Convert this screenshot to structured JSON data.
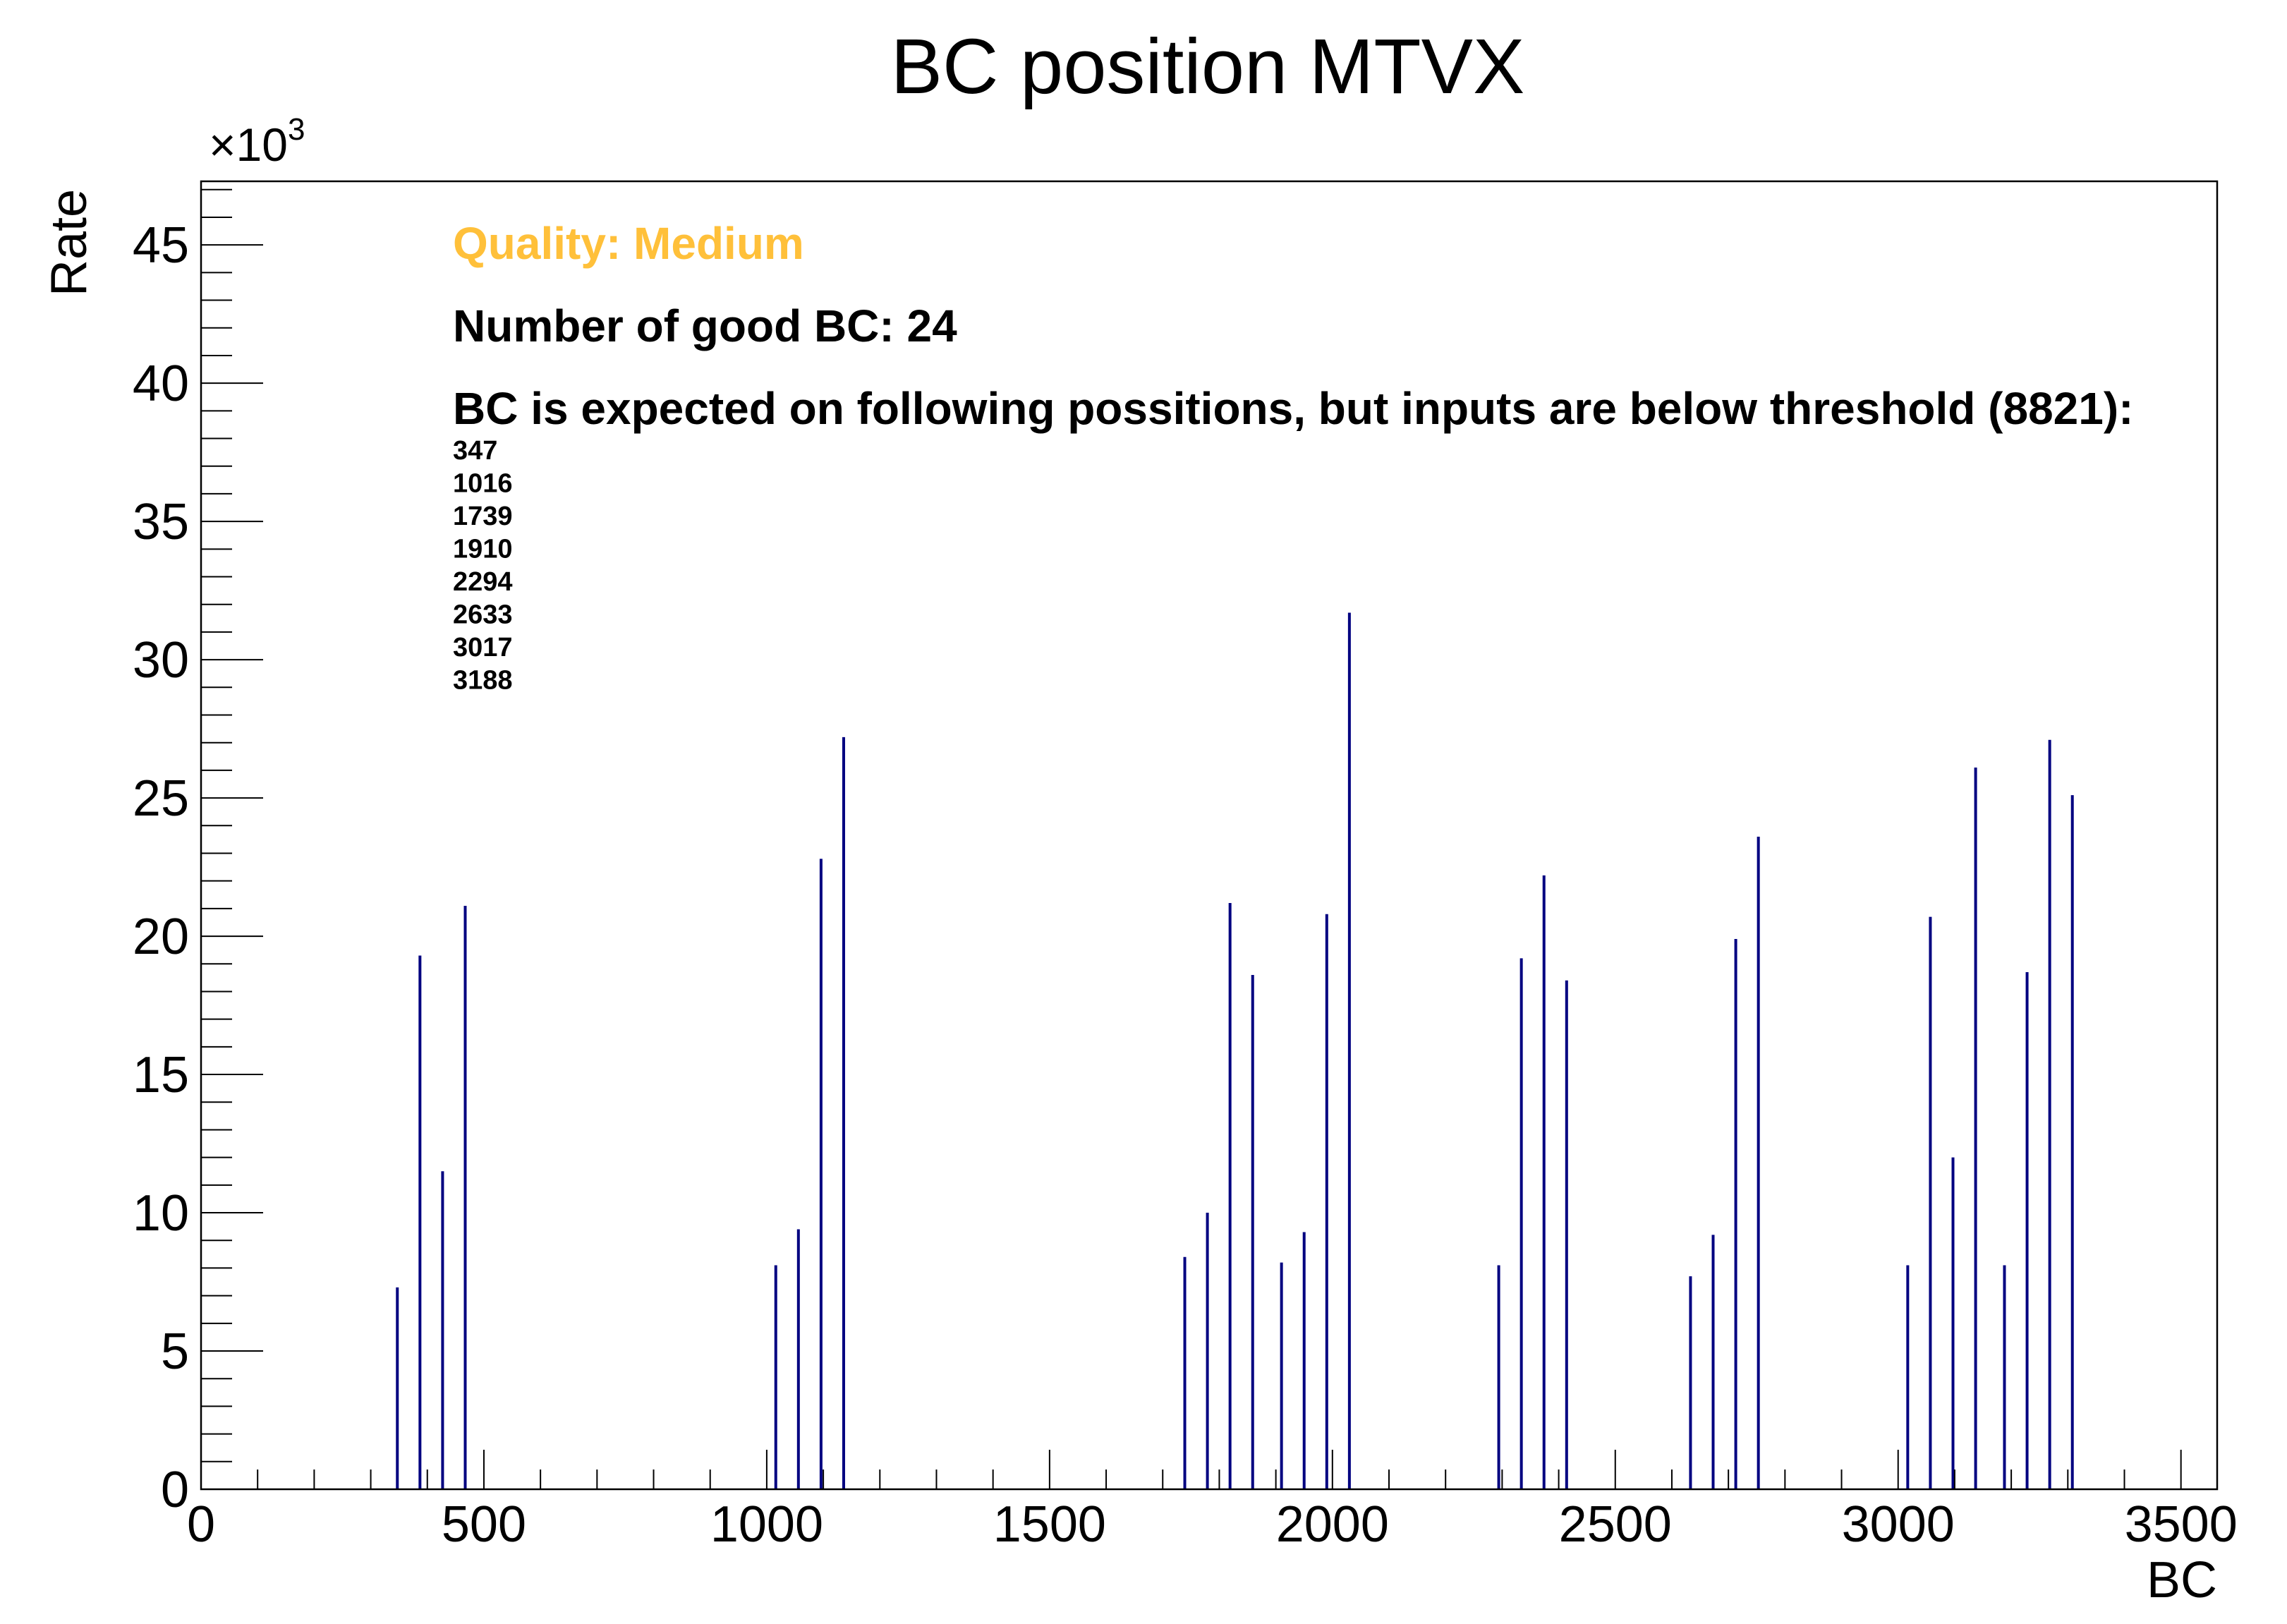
{
  "chart_data": {
    "type": "bar",
    "title": "BC position MTVX",
    "xlabel": "BC",
    "ylabel": "Rate",
    "exponent_label": "×10",
    "exponent_power": "3",
    "xlim": [
      0,
      3564
    ],
    "ylim": [
      0,
      47.3
    ],
    "x_ticks": [
      "0",
      "500",
      "1000",
      "1500",
      "2000",
      "2500",
      "3000",
      "3500"
    ],
    "y_ticks": [
      "0",
      "5",
      "10",
      "15",
      "20",
      "25",
      "30",
      "35",
      "40",
      "45"
    ],
    "grid": false,
    "bar_color": "#000080",
    "bars": [
      {
        "x": 347,
        "y": 7.3
      },
      {
        "x": 387,
        "y": 19.3
      },
      {
        "x": 427,
        "y": 11.5
      },
      {
        "x": 467,
        "y": 21.1
      },
      {
        "x": 1016,
        "y": 8.1
      },
      {
        "x": 1056,
        "y": 9.4
      },
      {
        "x": 1096,
        "y": 22.8
      },
      {
        "x": 1136,
        "y": 27.2
      },
      {
        "x": 1739,
        "y": 8.4
      },
      {
        "x": 1779,
        "y": 10.0
      },
      {
        "x": 1819,
        "y": 21.2
      },
      {
        "x": 1859,
        "y": 18.6
      },
      {
        "x": 1910,
        "y": 8.2
      },
      {
        "x": 1950,
        "y": 9.3
      },
      {
        "x": 1990,
        "y": 20.8
      },
      {
        "x": 2030,
        "y": 31.7
      },
      {
        "x": 2294,
        "y": 8.1
      },
      {
        "x": 2334,
        "y": 19.2
      },
      {
        "x": 2374,
        "y": 22.2
      },
      {
        "x": 2414,
        "y": 18.4
      },
      {
        "x": 2633,
        "y": 7.7
      },
      {
        "x": 2673,
        "y": 9.2
      },
      {
        "x": 2713,
        "y": 19.9
      },
      {
        "x": 2753,
        "y": 23.6
      },
      {
        "x": 3017,
        "y": 8.1
      },
      {
        "x": 3057,
        "y": 20.7
      },
      {
        "x": 3097,
        "y": 12.0
      },
      {
        "x": 3137,
        "y": 26.1
      },
      {
        "x": 3188,
        "y": 8.1
      },
      {
        "x": 3228,
        "y": 18.7
      },
      {
        "x": 3268,
        "y": 27.1
      },
      {
        "x": 3308,
        "y": 25.1
      }
    ],
    "annotations": {
      "quality": "Quality: Medium",
      "quality_color": "#ffc03a",
      "good_bc": "Number of good BC: 24",
      "expected_header": "BC is expected on following possitions, but inputs are below threshold (8821):",
      "expected_positions": [
        "347",
        "1016",
        "1739",
        "1910",
        "2294",
        "2633",
        "3017",
        "3188"
      ]
    }
  }
}
